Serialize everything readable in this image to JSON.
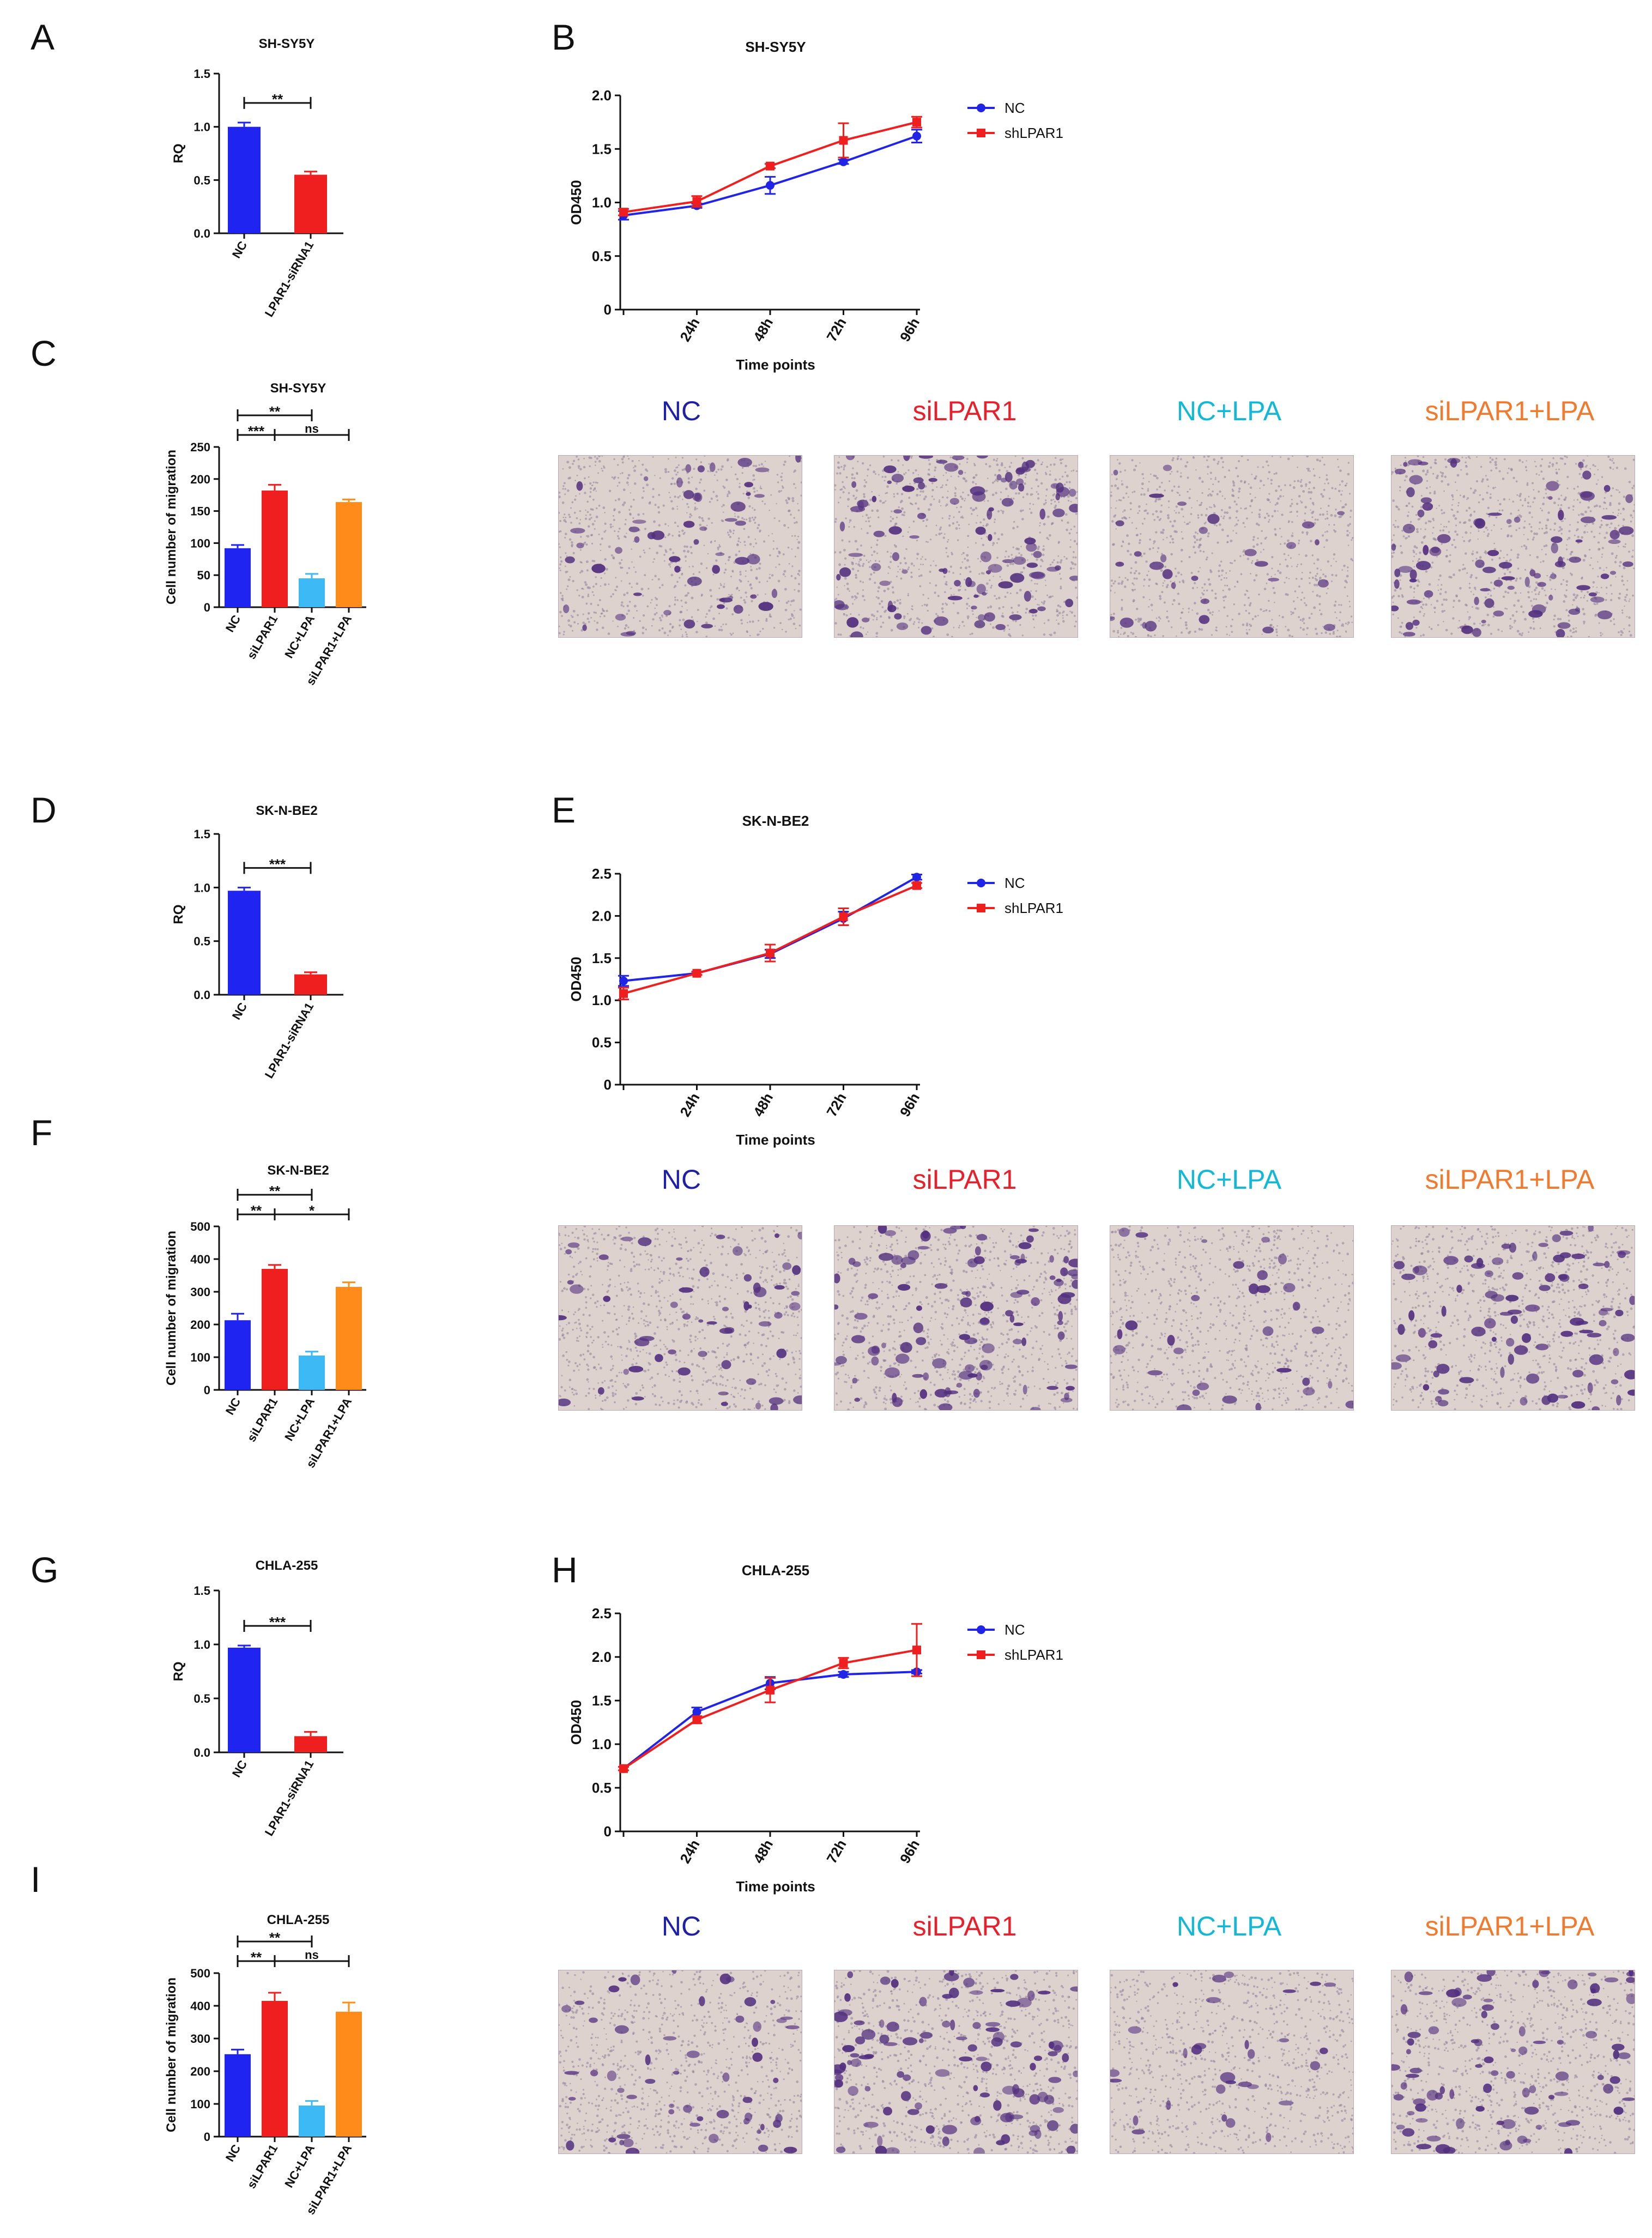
{
  "colors": {
    "nc": "#1f24f0",
    "si": "#f01f1f",
    "nclpa": "#3db9f5",
    "silpa": "#ff8c1a",
    "line_nc": "#1f24e6",
    "line_sh": "#f01f1f",
    "title_nc": "#1f1fa8",
    "title_si": "#e8202b",
    "title_nclpa": "#12b9d6",
    "title_silpa": "#f07a2e",
    "stain": "#53307f",
    "membrane": "#ddd2cd"
  },
  "letters": {
    "A": "A",
    "B": "B",
    "C": "C",
    "D": "D",
    "E": "E",
    "F": "F",
    "G": "G",
    "H": "H",
    "I": "I"
  },
  "micro_titles": [
    "NC",
    "siLPAR1",
    "NC+LPA",
    "siLPAR1+LPA"
  ],
  "chart_data": [
    {
      "id": "A",
      "type": "bar",
      "title": "SH-SY5Y",
      "ylabel": "RQ",
      "xlabel": "",
      "categories": [
        "NC",
        "LPAR1-siRNA1"
      ],
      "values": [
        1.0,
        0.55
      ],
      "errors": [
        0.04,
        0.03
      ],
      "ylim": [
        0,
        1.5
      ],
      "yticks": [
        0.0,
        0.5,
        1.0,
        1.5
      ],
      "ytick_labels": [
        "0.0",
        "0.5",
        "1.0",
        "1.5"
      ],
      "brackets": [
        {
          "from": 0,
          "to": 1,
          "label": "**",
          "level": 0
        }
      ]
    },
    {
      "id": "B",
      "type": "line",
      "title": "SH-SY5Y",
      "ylabel": "OD450",
      "xlabel": "Time points",
      "x": [
        "0h",
        "24h",
        "48h",
        "72h",
        "96h"
      ],
      "xtick_labels": [
        "",
        "24h",
        "48h",
        "72h",
        "96h"
      ],
      "ylim": [
        0,
        2.0
      ],
      "yticks": [
        0,
        0.5,
        1.0,
        1.5,
        2.0
      ],
      "ytick_labels": [
        "0",
        "0.5",
        "1.0",
        "1.5",
        "2.0"
      ],
      "series": [
        {
          "name": "NC",
          "values": [
            0.88,
            0.97,
            1.16,
            1.38,
            1.62
          ],
          "errors": [
            0.04,
            0.02,
            0.08,
            0.02,
            0.06
          ]
        },
        {
          "name": "shLPAR1",
          "values": [
            0.91,
            1.01,
            1.34,
            1.58,
            1.75
          ],
          "errors": [
            0.03,
            0.05,
            0.02,
            0.16,
            0.05
          ]
        }
      ]
    },
    {
      "id": "C",
      "type": "bar",
      "title": "SH-SY5Y",
      "ylabel": "Cell number of migration",
      "xlabel": "",
      "categories": [
        "NC",
        "siLPAR1",
        "NC+LPA",
        "siLPAR1+LPA"
      ],
      "values": [
        92,
        182,
        45,
        164
      ],
      "errors": [
        5,
        9,
        7,
        4
      ],
      "ylim": [
        0,
        250
      ],
      "yticks": [
        0,
        50,
        100,
        150,
        200,
        250
      ],
      "ytick_labels": [
        "0",
        "50",
        "100",
        "150",
        "200",
        "250"
      ],
      "brackets": [
        {
          "from": 0,
          "to": 2,
          "label": "**",
          "level": 2
        },
        {
          "from": 0,
          "to": 1,
          "label": "***",
          "level": 1
        },
        {
          "from": 1,
          "to": 3,
          "label": "ns",
          "level": 1
        }
      ]
    },
    {
      "id": "D",
      "type": "bar",
      "title": "SK-N-BE2",
      "ylabel": "RQ",
      "xlabel": "",
      "categories": [
        "NC",
        "LPAR1-siRNA1"
      ],
      "values": [
        0.97,
        0.19
      ],
      "errors": [
        0.03,
        0.02
      ],
      "ylim": [
        0,
        1.5
      ],
      "yticks": [
        0.0,
        0.5,
        1.0,
        1.5
      ],
      "ytick_labels": [
        "0.0",
        "0.5",
        "1.0",
        "1.5"
      ],
      "brackets": [
        {
          "from": 0,
          "to": 1,
          "label": "***",
          "level": 0
        }
      ]
    },
    {
      "id": "E",
      "type": "line",
      "title": "SK-N-BE2",
      "ylabel": "OD450",
      "xlabel": "Time points",
      "x": [
        "0h",
        "24h",
        "48h",
        "72h",
        "96h"
      ],
      "xtick_labels": [
        "",
        "24h",
        "48h",
        "72h",
        "96h"
      ],
      "ylim": [
        0,
        2.5
      ],
      "yticks": [
        0,
        0.5,
        1.0,
        1.5,
        2.0,
        2.5
      ],
      "ytick_labels": [
        "0",
        "0.5",
        "1.0",
        "1.5",
        "2.0",
        "2.5"
      ],
      "series": [
        {
          "name": "NC",
          "values": [
            1.23,
            1.32,
            1.55,
            1.97,
            2.46
          ],
          "errors": [
            0.06,
            0.02,
            0.05,
            0.08,
            0.03
          ]
        },
        {
          "name": "shLPAR1",
          "values": [
            1.08,
            1.32,
            1.56,
            1.99,
            2.36
          ],
          "errors": [
            0.07,
            0.02,
            0.1,
            0.1,
            0.03
          ]
        }
      ]
    },
    {
      "id": "F",
      "type": "bar",
      "title": "SK-N-BE2",
      "ylabel": "Cell number of migration",
      "xlabel": "",
      "categories": [
        "NC",
        "siLPAR1",
        "NC+LPA",
        "siLPAR1+LPA"
      ],
      "values": [
        213,
        370,
        105,
        315
      ],
      "errors": [
        20,
        12,
        12,
        14
      ],
      "ylim": [
        0,
        500
      ],
      "yticks": [
        0,
        100,
        200,
        300,
        400,
        500
      ],
      "ytick_labels": [
        "0",
        "100",
        "200",
        "300",
        "400",
        "500"
      ],
      "brackets": [
        {
          "from": 0,
          "to": 2,
          "label": "**",
          "level": 2
        },
        {
          "from": 0,
          "to": 1,
          "label": "**",
          "level": 1
        },
        {
          "from": 1,
          "to": 3,
          "label": "*",
          "level": 1
        }
      ]
    },
    {
      "id": "G",
      "type": "bar",
      "title": "CHLA-255",
      "ylabel": "RQ",
      "xlabel": "",
      "categories": [
        "NC",
        "LPAR1-siRNA1"
      ],
      "values": [
        0.97,
        0.15
      ],
      "errors": [
        0.02,
        0.04
      ],
      "ylim": [
        0,
        1.5
      ],
      "yticks": [
        0.0,
        0.5,
        1.0,
        1.5
      ],
      "ytick_labels": [
        "0.0",
        "0.5",
        "1.0",
        "1.5"
      ],
      "brackets": [
        {
          "from": 0,
          "to": 1,
          "label": "***",
          "level": 0
        }
      ]
    },
    {
      "id": "H",
      "type": "line",
      "title": "CHLA-255",
      "ylabel": "OD450",
      "xlabel": "Time points",
      "x": [
        "0h",
        "24h",
        "48h",
        "72h",
        "96h"
      ],
      "xtick_labels": [
        "",
        "24h",
        "48h",
        "72h",
        "96h"
      ],
      "ylim": [
        0,
        2.5
      ],
      "yticks": [
        0,
        0.5,
        1.0,
        1.5,
        2.0,
        2.5
      ],
      "ytick_labels": [
        "0",
        "0.5",
        "1.0",
        "1.5",
        "2.0",
        "2.5"
      ],
      "series": [
        {
          "name": "NC",
          "values": [
            0.72,
            1.37,
            1.7,
            1.8,
            1.83
          ],
          "errors": [
            0.02,
            0.05,
            0.07,
            0.03,
            0.02
          ]
        },
        {
          "name": "shLPAR1",
          "values": [
            0.72,
            1.28,
            1.62,
            1.93,
            2.08
          ],
          "errors": [
            0.02,
            0.04,
            0.14,
            0.06,
            0.3
          ]
        }
      ]
    },
    {
      "id": "I",
      "type": "bar",
      "title": "CHLA-255",
      "ylabel": "Cell number of migration",
      "xlabel": "",
      "categories": [
        "NC",
        "siLPAR1",
        "NC+LPA",
        "siLPAR1+LPA"
      ],
      "values": [
        252,
        415,
        95,
        382
      ],
      "errors": [
        14,
        25,
        14,
        28
      ],
      "ylim": [
        0,
        500
      ],
      "yticks": [
        0,
        100,
        200,
        300,
        400,
        500
      ],
      "ytick_labels": [
        "0",
        "100",
        "200",
        "300",
        "400",
        "500"
      ],
      "brackets": [
        {
          "from": 0,
          "to": 2,
          "label": "**",
          "level": 2
        },
        {
          "from": 0,
          "to": 1,
          "label": "**",
          "level": 1
        },
        {
          "from": 1,
          "to": 3,
          "label": "ns",
          "level": 1
        }
      ]
    }
  ]
}
